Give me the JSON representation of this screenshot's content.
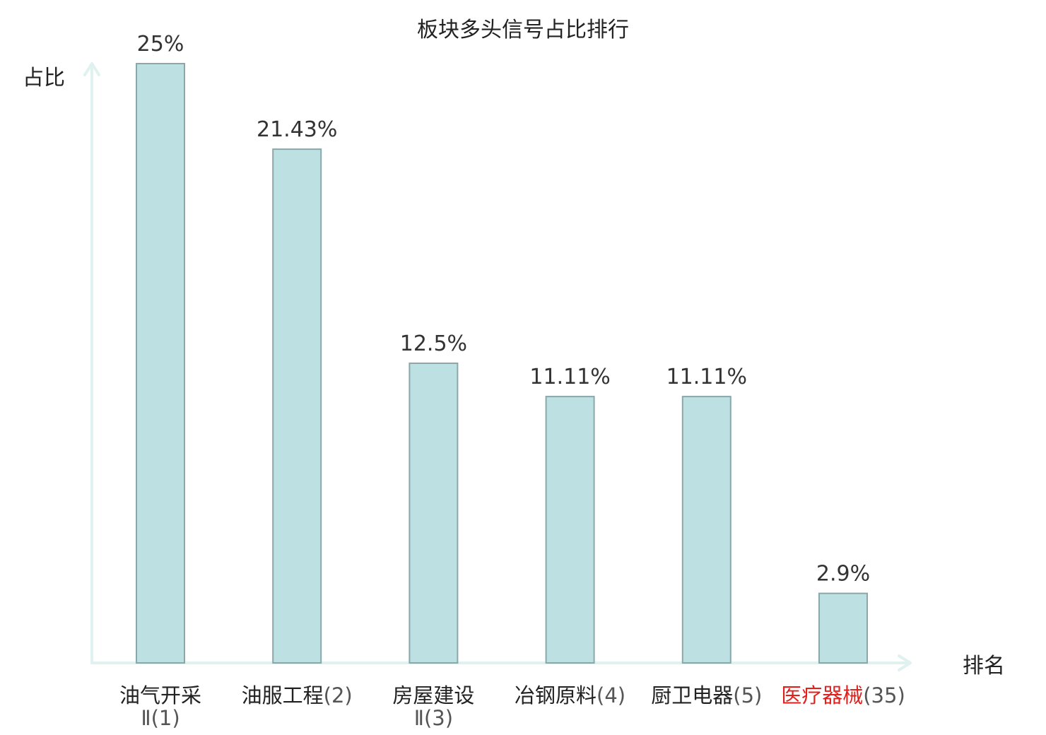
{
  "chart_data": {
    "type": "bar",
    "title": "板块多头信号占比排行",
    "xlabel": "排名",
    "ylabel": "占比",
    "ylim": [
      0,
      25
    ],
    "grid": false,
    "categories": [
      {
        "name": "油气开采Ⅱ",
        "rank": "(1)",
        "highlight": false
      },
      {
        "name": "油服工程",
        "rank": "(2)",
        "highlight": false
      },
      {
        "name": "房屋建设Ⅱ",
        "rank": "(3)",
        "highlight": false
      },
      {
        "name": "冶钢原料",
        "rank": "(4)",
        "highlight": false
      },
      {
        "name": "厨卫电器",
        "rank": "(5)",
        "highlight": false
      },
      {
        "name": "医疗器械",
        "rank": "(35)",
        "highlight": true
      }
    ],
    "values": [
      25,
      21.43,
      12.5,
      11.11,
      11.11,
      2.9
    ],
    "value_labels": [
      "25%",
      "21.43%",
      "12.5%",
      "11.11%",
      "11.11%",
      "2.9%"
    ]
  },
  "colors": {
    "bar_fill": "#bde1e3",
    "bar_stroke": "#8aa8aa",
    "axis": "#dff2ef",
    "highlight": "#e0201c"
  }
}
